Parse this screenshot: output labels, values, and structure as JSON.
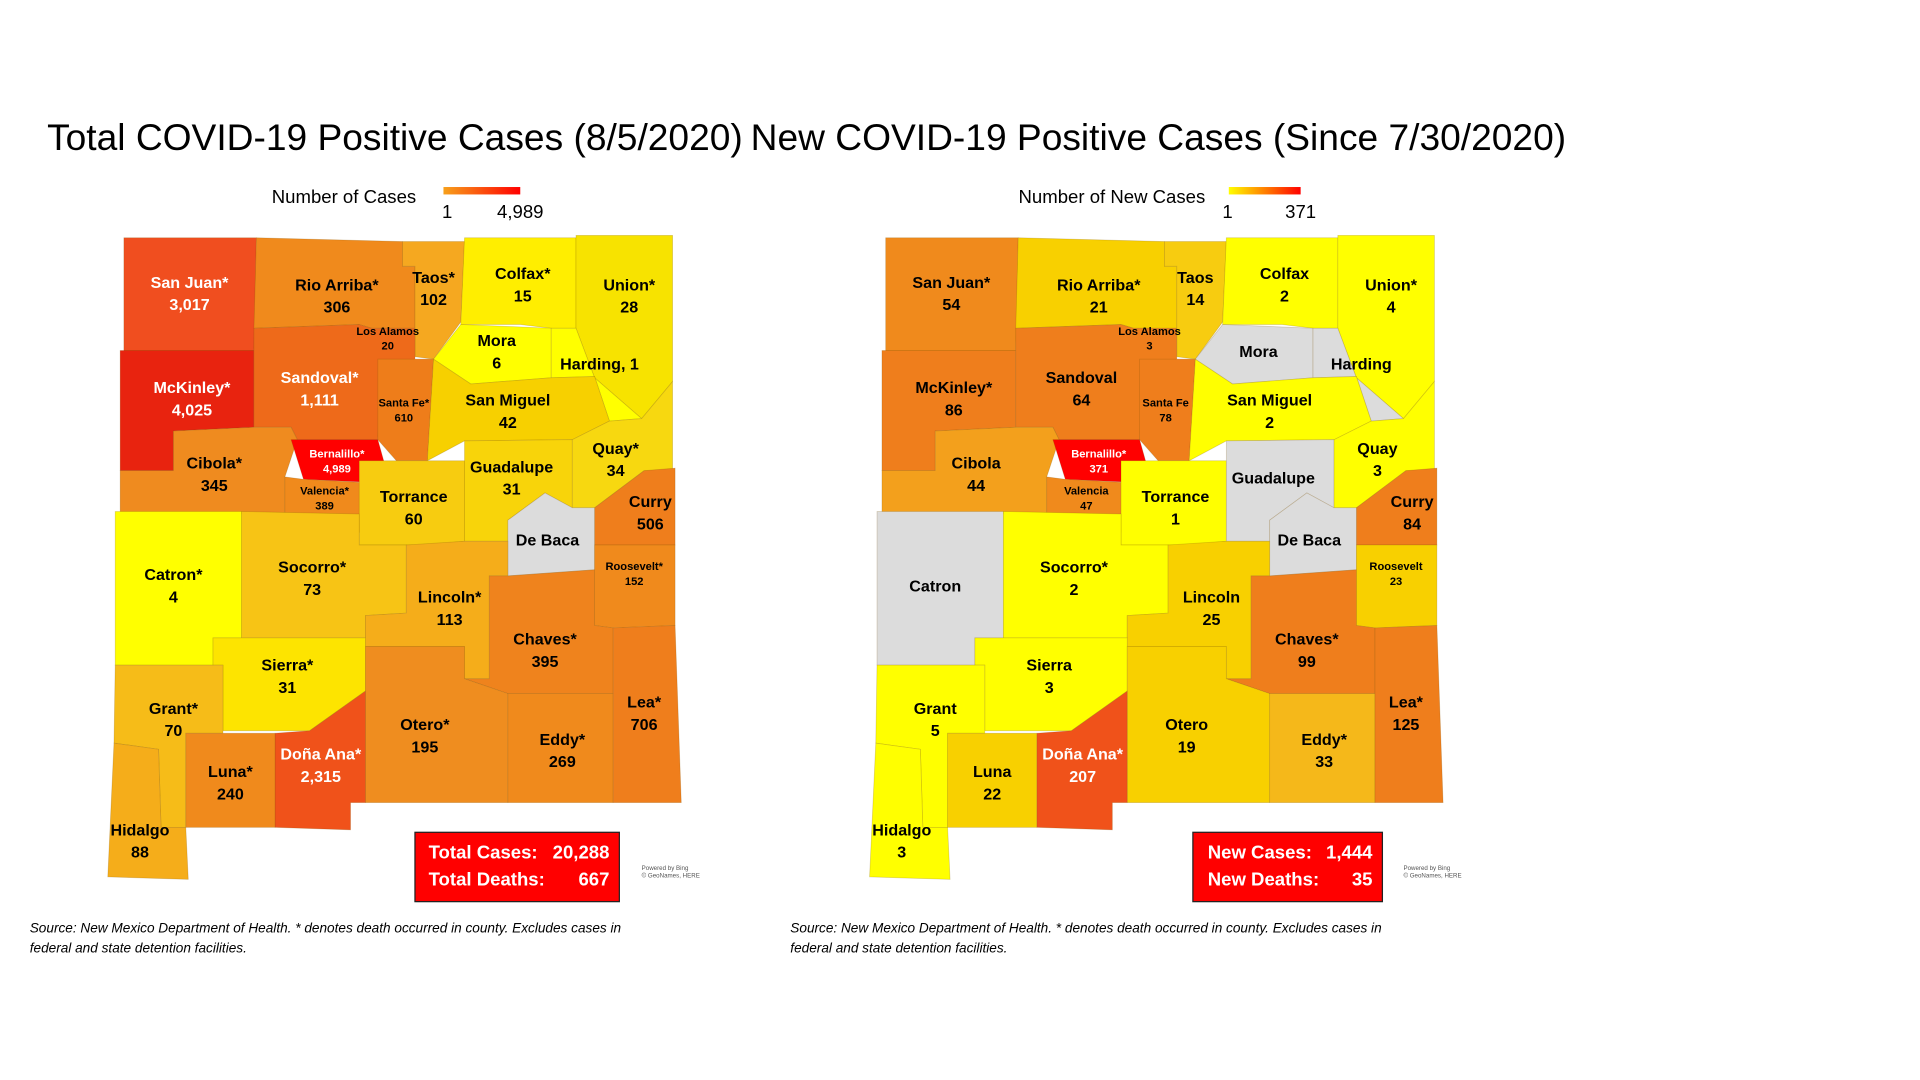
{
  "maps": [
    {
      "title": "Total COVID-19 Positive Cases (8/5/2020)",
      "legend": {
        "title": "Number of Cases",
        "min": "1",
        "max": "4,989",
        "gradient": [
          "#f7a01b",
          "#ff0000"
        ]
      },
      "counties": [
        {
          "name": "San Juan*",
          "value": "3,017",
          "color": "#f04e1f"
        },
        {
          "name": "Rio Arriba*",
          "value": "306",
          "color": "#f08a1c"
        },
        {
          "name": "Taos*",
          "value": "102",
          "color": "#f5a820"
        },
        {
          "name": "Colfax*",
          "value": "15",
          "color": "#ffee00"
        },
        {
          "name": "Union*",
          "value": "28",
          "color": "#f7e300"
        },
        {
          "name": "Los Alamos",
          "value": "20",
          "color": "#f9d200"
        },
        {
          "name": "Mora",
          "value": "6",
          "color": "#ffff00"
        },
        {
          "name": "Harding, 1",
          "color": "#ffff00"
        },
        {
          "name": "McKinley*",
          "value": "4,025",
          "color": "#e8230f"
        },
        {
          "name": "Sandoval*",
          "value": "1,111",
          "color": "#ee6a1a"
        },
        {
          "name": "Santa Fe*",
          "value": "610",
          "color": "#ee7d1a"
        },
        {
          "name": "San Miguel",
          "value": "42",
          "color": "#f7d000"
        },
        {
          "name": "Cibola*",
          "value": "345",
          "color": "#ef8b1f"
        },
        {
          "name": "Bernalillo*",
          "value": "4,989",
          "color": "#ff0000"
        },
        {
          "name": "Valencia*",
          "value": "389",
          "color": "#f08a1c"
        },
        {
          "name": "Torrance",
          "value": "60",
          "color": "#f7cc10"
        },
        {
          "name": "Guadalupe",
          "value": "31",
          "color": "#f8d40a"
        },
        {
          "name": "Quay*",
          "value": "34",
          "color": "#f7d810"
        },
        {
          "name": "Curry",
          "value": "506",
          "color": "#ef7e1c"
        },
        {
          "name": "De Baca",
          "color": "#dcdcdc"
        },
        {
          "name": "Roosevelt*",
          "value": "152",
          "color": "#f08a1c"
        },
        {
          "name": "Catron*",
          "value": "4",
          "color": "#ffff00"
        },
        {
          "name": "Socorro*",
          "value": "73",
          "color": "#f7c415"
        },
        {
          "name": "Lincoln*",
          "value": "113",
          "color": "#f5ad1a"
        },
        {
          "name": "Sierra*",
          "value": "31",
          "color": "#fde400"
        },
        {
          "name": "Grant*",
          "value": "70",
          "color": "#f6bc18"
        },
        {
          "name": "Chaves*",
          "value": "395",
          "color": "#ef831d"
        },
        {
          "name": "Otero*",
          "value": "195",
          "color": "#ef8d1f"
        },
        {
          "name": "Eddy*",
          "value": "269",
          "color": "#f08a1c"
        },
        {
          "name": "Lea*",
          "value": "706",
          "color": "#ef7e1c"
        },
        {
          "name": "Doña Ana*",
          "value": "2,315",
          "color": "#f0521a"
        },
        {
          "name": "Luna*",
          "value": "240",
          "color": "#f08a1c"
        },
        {
          "name": "Hidalgo",
          "value": "88",
          "color": "#f5ad1a"
        }
      ],
      "summary": [
        {
          "label": "Total Cases:",
          "value": "20,288"
        },
        {
          "label": "Total Deaths:",
          "value": "667"
        }
      ],
      "credit": [
        "Powered by Bing",
        "© GeoNames, HERE"
      ],
      "source": [
        "Source: New Mexico Department of Health. * denotes death occurred in county. Excludes cases in",
        "federal and state detention facilities."
      ]
    },
    {
      "title": "New COVID-19 Positive Cases (Since 7/30/2020)",
      "legend": {
        "title": "Number of New Cases",
        "min": "1",
        "max": "371",
        "gradient": [
          "#ffff00",
          "#ff0000"
        ]
      },
      "counties": [
        {
          "name": "San Juan*",
          "value": "54",
          "color": "#f08a1c"
        },
        {
          "name": "Rio Arriba*",
          "value": "21",
          "color": "#f8d000"
        },
        {
          "name": "Taos",
          "value": "14",
          "color": "#f7cc10"
        },
        {
          "name": "Colfax",
          "value": "2",
          "color": "#ffff00"
        },
        {
          "name": "Union*",
          "value": "4",
          "color": "#ffff00"
        },
        {
          "name": "Los Alamos",
          "value": "3",
          "color": "#ffff00"
        },
        {
          "name": "Mora",
          "color": "#dcdcdc"
        },
        {
          "name": "Harding",
          "color": "#dcdcdc"
        },
        {
          "name": "McKinley*",
          "value": "86",
          "color": "#ef7e1c"
        },
        {
          "name": "Sandoval",
          "value": "64",
          "color": "#ef7e1c"
        },
        {
          "name": "Santa Fe",
          "value": "78",
          "color": "#ef7e1c"
        },
        {
          "name": "San Miguel",
          "value": "2",
          "color": "#ffff00"
        },
        {
          "name": "Cibola",
          "value": "44",
          "color": "#f3a01c"
        },
        {
          "name": "Bernalillo*",
          "value": "371",
          "color": "#ff0000"
        },
        {
          "name": "Valencia",
          "value": "47",
          "color": "#f08a1c"
        },
        {
          "name": "Torrance",
          "value": "1",
          "color": "#ffff00"
        },
        {
          "name": "Guadalupe",
          "color": "#dcdcdc"
        },
        {
          "name": "Quay",
          "value": "3",
          "color": "#ffff00"
        },
        {
          "name": "Curry",
          "value": "84",
          "color": "#ef7e1c"
        },
        {
          "name": "De Baca",
          "color": "#dcdcdc"
        },
        {
          "name": "Roosevelt",
          "value": "23",
          "color": "#f8d000"
        },
        {
          "name": "Catron",
          "color": "#dcdcdc"
        },
        {
          "name": "Socorro*",
          "value": "2",
          "color": "#ffff00"
        },
        {
          "name": "Lincoln",
          "value": "25",
          "color": "#f8d000"
        },
        {
          "name": "Sierra",
          "value": "3",
          "color": "#ffff00"
        },
        {
          "name": "Grant",
          "value": "5",
          "color": "#ffff00"
        },
        {
          "name": "Chaves*",
          "value": "99",
          "color": "#ef7e1c"
        },
        {
          "name": "Otero",
          "value": "19",
          "color": "#f8d000"
        },
        {
          "name": "Eddy*",
          "value": "33",
          "color": "#f5b81a"
        },
        {
          "name": "Lea*",
          "value": "125",
          "color": "#ef7e1c"
        },
        {
          "name": "Doña Ana*",
          "value": "207",
          "color": "#f0521a"
        },
        {
          "name": "Luna",
          "value": "22",
          "color": "#f8d000"
        },
        {
          "name": "Hidalgo",
          "value": "3",
          "color": "#ffff00"
        }
      ],
      "summary": [
        {
          "label": "New Cases:",
          "value": "1,444"
        },
        {
          "label": "New Deaths:",
          "value": "35"
        }
      ],
      "credit": [
        "Powered by Bing",
        "© GeoNames, HERE"
      ],
      "source": [
        "Source: New Mexico Department of Health. * denotes death occurred in county. Excludes cases in",
        "federal and state detention facilities."
      ]
    }
  ]
}
